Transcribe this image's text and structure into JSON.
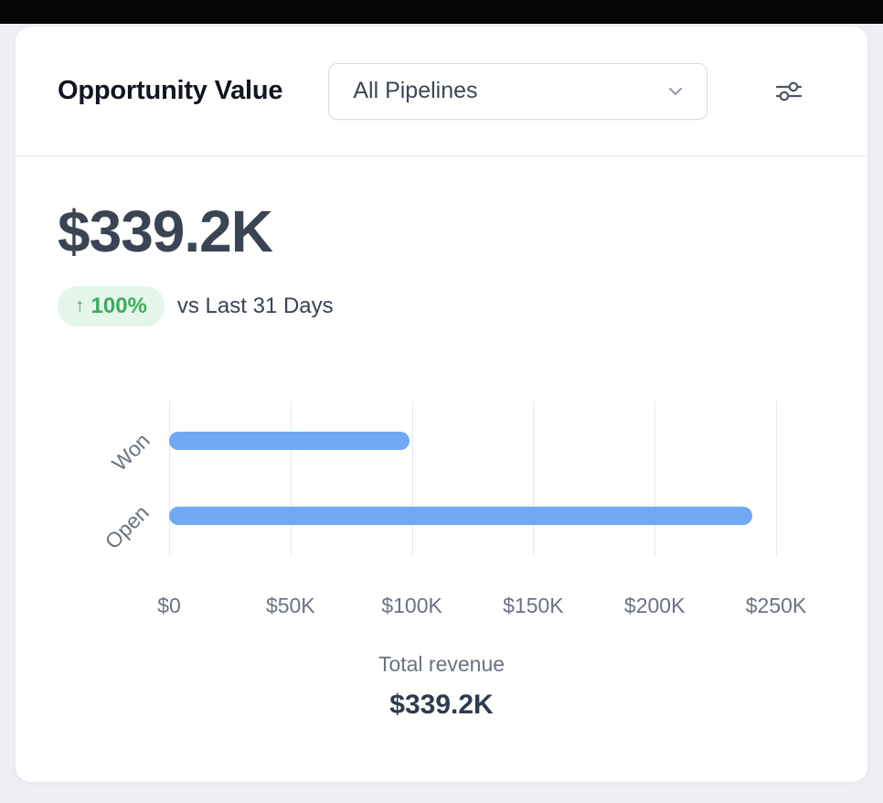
{
  "header": {
    "title": "Opportunity Value",
    "pipeline_dropdown": {
      "value": "All Pipelines"
    },
    "filter_icon": "horizontal-sliders-icon"
  },
  "summary": {
    "total_value": "$339.2K",
    "badge": {
      "arrow": "↑",
      "percent": "100%"
    },
    "comparison": "vs Last 31 Days"
  },
  "chart_data": {
    "type": "bar",
    "orientation": "horizontal",
    "categories": [
      "Won",
      "Open"
    ],
    "values": [
      99000,
      240200
    ],
    "x_ticks": [
      0,
      50000,
      100000,
      150000,
      200000,
      250000
    ],
    "x_tick_labels": [
      "$0",
      "$50K",
      "$100K",
      "$150K",
      "$200K",
      "$250K"
    ],
    "xlim": [
      0,
      250000
    ],
    "grid": true,
    "legend_position": "none",
    "bar_color": "#6FA8F5",
    "title": ""
  },
  "footer": {
    "label": "Total revenue",
    "value": "$339.2K"
  },
  "colors": {
    "accent_blue": "#6FA8F5",
    "badge_bg": "#E4F6E9",
    "badge_text": "#3BAB5F",
    "kpi_text": "#3A4454",
    "muted_text": "#6B7280"
  }
}
